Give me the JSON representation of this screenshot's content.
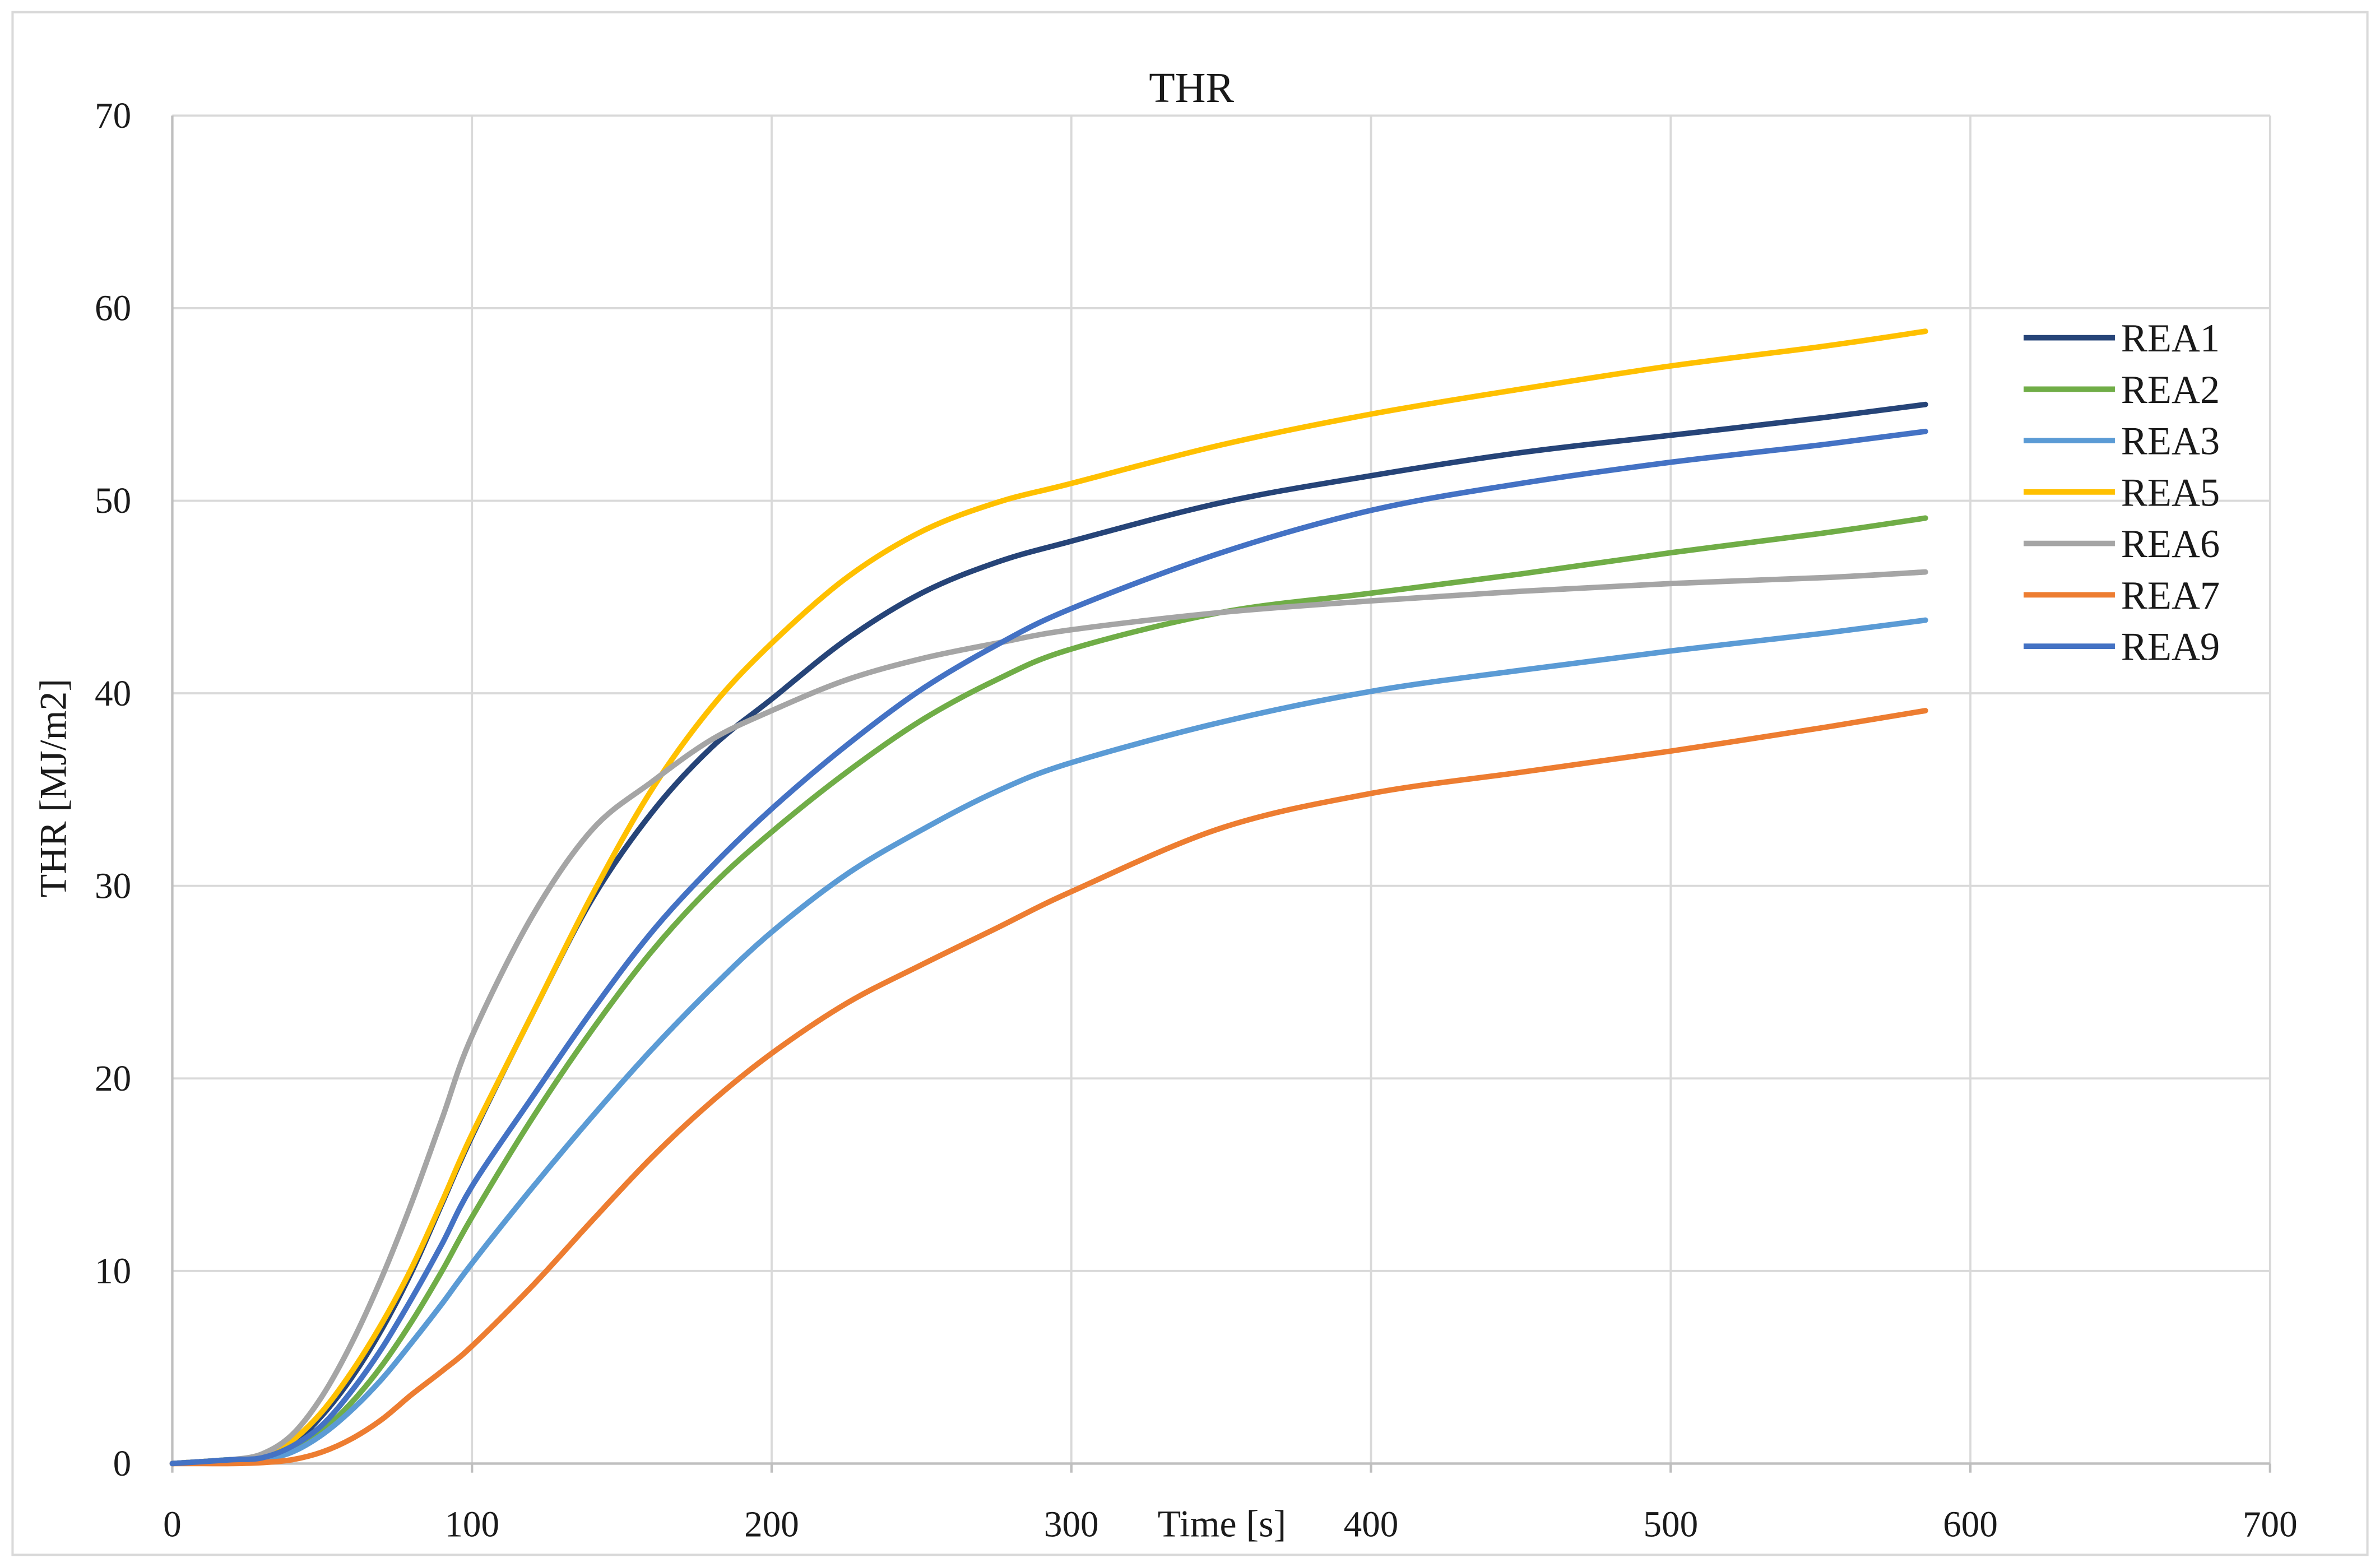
{
  "chart_data": {
    "type": "line",
    "title": "THR",
    "xlabel": "Time [s]",
    "ylabel": "THR [MJ/m2]",
    "xlim": [
      0,
      700
    ],
    "ylim": [
      0,
      70
    ],
    "xticks": [
      0,
      100,
      200,
      300,
      400,
      500,
      600,
      700
    ],
    "yticks": [
      0,
      10,
      20,
      30,
      40,
      50,
      60,
      70
    ],
    "grid": true,
    "legend_position": "right",
    "x": [
      0,
      10,
      20,
      30,
      40,
      50,
      60,
      70,
      80,
      90,
      100,
      120,
      140,
      160,
      180,
      200,
      225,
      250,
      275,
      300,
      350,
      400,
      450,
      500,
      550,
      585
    ],
    "series": [
      {
        "name": "REA1",
        "color": "#264478",
        "values": [
          0,
          0.1,
          0.2,
          0.3,
          1.0,
          2.5,
          4.5,
          7.0,
          10.0,
          13.5,
          17.0,
          23.3,
          29.3,
          33.8,
          37.2,
          39.7,
          42.8,
          45.2,
          46.8,
          47.9,
          49.9,
          51.3,
          52.5,
          53.4,
          54.3,
          55.0
        ]
      },
      {
        "name": "REA2",
        "color": "#70AD47",
        "values": [
          0,
          0.1,
          0.2,
          0.2,
          0.7,
          1.7,
          3.2,
          5.1,
          7.4,
          10.0,
          12.8,
          17.9,
          22.5,
          26.6,
          30.0,
          32.8,
          35.9,
          38.6,
          40.7,
          42.3,
          44.2,
          45.2,
          46.2,
          47.3,
          48.3,
          49.1
        ]
      },
      {
        "name": "REA3",
        "color": "#5B9BD5",
        "values": [
          0,
          0.1,
          0.2,
          0.2,
          0.6,
          1.5,
          2.8,
          4.4,
          6.3,
          8.3,
          10.4,
          14.3,
          18.0,
          21.5,
          24.7,
          27.6,
          30.6,
          32.9,
          34.9,
          36.4,
          38.5,
          40.1,
          41.2,
          42.2,
          43.1,
          43.8
        ]
      },
      {
        "name": "REA5",
        "color": "#FFC000",
        "values": [
          0,
          0.1,
          0.2,
          0.4,
          1.2,
          2.7,
          4.8,
          7.3,
          10.2,
          13.6,
          17.1,
          23.3,
          29.5,
          35.0,
          39.3,
          42.6,
          46.0,
          48.4,
          49.9,
          50.9,
          52.9,
          54.5,
          55.8,
          57.0,
          58.0,
          58.8
        ]
      },
      {
        "name": "REA6",
        "color": "#A5A5A5",
        "values": [
          0,
          0.1,
          0.2,
          0.5,
          1.5,
          3.5,
          6.3,
          9.7,
          13.6,
          17.9,
          22.2,
          28.4,
          32.9,
          35.4,
          37.6,
          39.1,
          40.7,
          41.8,
          42.6,
          43.3,
          44.2,
          44.8,
          45.3,
          45.7,
          46.0,
          46.3
        ]
      },
      {
        "name": "REA7",
        "color": "#ED7D31",
        "values": [
          0,
          0,
          0,
          0.05,
          0.2,
          0.6,
          1.3,
          2.3,
          3.6,
          4.8,
          6.1,
          9.2,
          12.6,
          15.9,
          18.8,
          21.3,
          23.9,
          25.9,
          27.8,
          29.7,
          33.0,
          34.8,
          35.9,
          37.0,
          38.2,
          39.1
        ]
      },
      {
        "name": "REA9",
        "color": "#4472C4",
        "values": [
          0,
          0.1,
          0.2,
          0.3,
          0.9,
          2.0,
          3.8,
          6.0,
          8.6,
          11.4,
          14.4,
          19.0,
          23.5,
          27.6,
          31.0,
          34.0,
          37.3,
          40.2,
          42.5,
          44.4,
          47.3,
          49.5,
          50.9,
          52.0,
          52.9,
          53.6
        ]
      }
    ]
  }
}
